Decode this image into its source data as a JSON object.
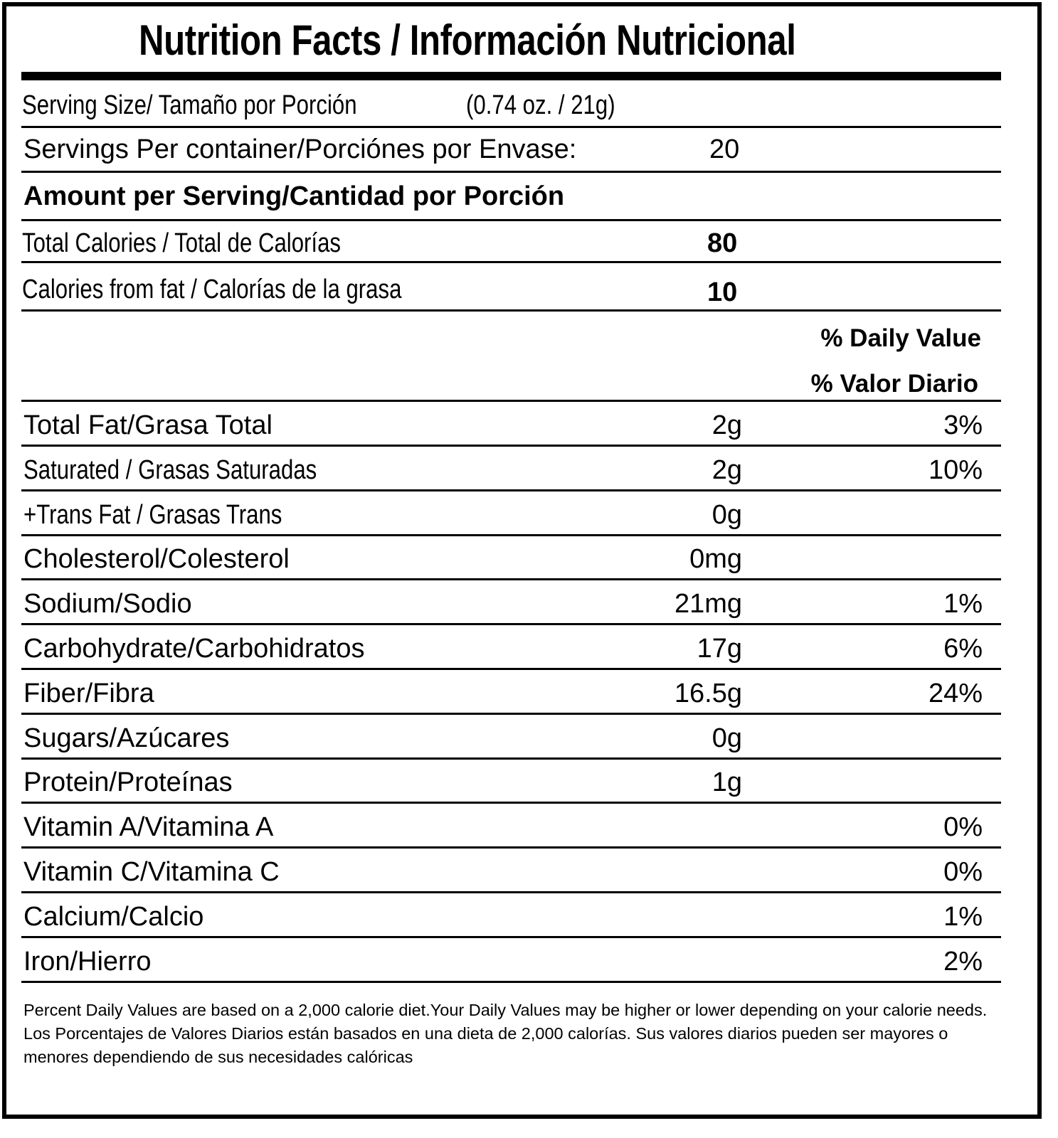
{
  "title": "Nutrition Facts / Información Nutricional",
  "serving_size": {
    "label": "Serving Size/ Tamaño por Porción",
    "value": "(0.74 oz. / 21g)"
  },
  "servings_per_container": {
    "label": "Servings Per container/Porciónes por Envase:",
    "value": "20"
  },
  "amount_header": "Amount per Serving/Cantidad por Porción",
  "calories": {
    "label": "Total Calories / Total de Calorías",
    "value": "80"
  },
  "calories_fat": {
    "label": "Calories from fat / Calorías de la grasa",
    "value": "10"
  },
  "dv_header": {
    "en": "% Daily Value",
    "es": "% Valor Diario"
  },
  "nutrients": [
    {
      "label": "Total Fat/Grasa Total",
      "amount": "2g",
      "dv": "3%"
    },
    {
      "label": "Saturated / Grasas Saturadas",
      "amount": "2g",
      "dv": "10%"
    },
    {
      "label": "+Trans Fat / Grasas Trans",
      "amount": "0g",
      "dv": ""
    },
    {
      "label": "Cholesterol/Colesterol",
      "amount": "0mg",
      "dv": ""
    },
    {
      "label": "Sodium/Sodio",
      "amount": "21mg",
      "dv": "1%"
    },
    {
      "label": "Carbohydrate/Carbohidratos",
      "amount": "17g",
      "dv": "6%"
    },
    {
      "label": "Fiber/Fibra",
      "amount": "16.5g",
      "dv": "24%"
    },
    {
      "label": "Sugars/Azúcares",
      "amount": "0g",
      "dv": ""
    },
    {
      "label": "Protein/Proteínas",
      "amount": "1g",
      "dv": ""
    },
    {
      "label": "Vitamin A/Vitamina A",
      "amount": "",
      "dv": "0%"
    },
    {
      "label": "Vitamin C/Vitamina C",
      "amount": "",
      "dv": "0%"
    },
    {
      "label": "Calcium/Calcio",
      "amount": "",
      "dv": "1%"
    },
    {
      "label": "Iron/Hierro",
      "amount": "",
      "dv": "2%"
    }
  ],
  "footnote": {
    "en": "Percent Daily Values are based on a 2,000 calorie diet.Your Daily Values may be higher or lower depending on your calorie needs.",
    "es": "Los Porcentajes de Valores Diarios están basados en una dieta de 2,000 calorías. Sus valores diarios pueden ser mayores o menores dependiendo de sus necesidades calóricas"
  }
}
